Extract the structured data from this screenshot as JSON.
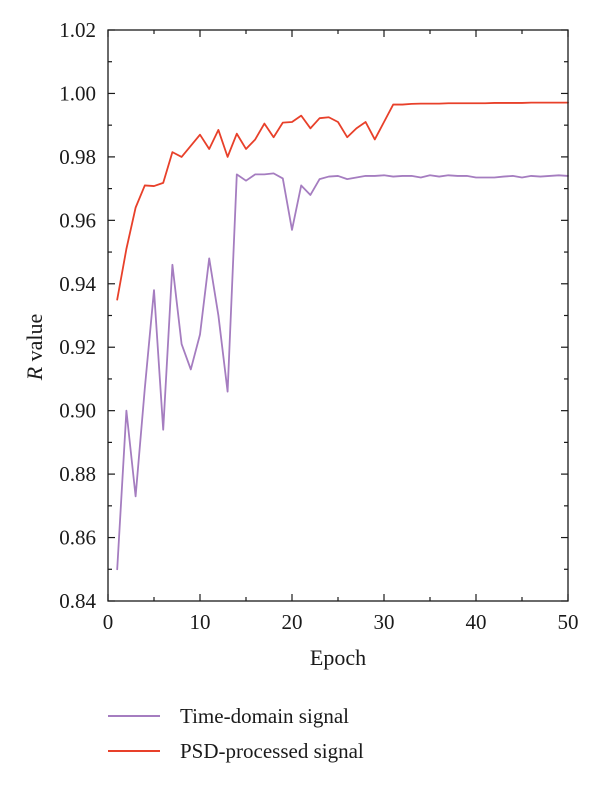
{
  "chart_data": {
    "type": "line",
    "title": "",
    "xlabel": "Epoch",
    "ylabel_italic": "R",
    "ylabel_rest": " value",
    "xlim": [
      0,
      50
    ],
    "ylim": [
      0.84,
      1.02
    ],
    "xticks": [
      0,
      10,
      20,
      30,
      40,
      50
    ],
    "xtick_labels": [
      "0",
      "10",
      "20",
      "30",
      "40",
      "50"
    ],
    "yticks": [
      0.84,
      0.86,
      0.88,
      0.9,
      0.92,
      0.94,
      0.96,
      0.98,
      1.0,
      1.02
    ],
    "ytick_labels": [
      "0.84",
      "0.86",
      "0.88",
      "0.90",
      "0.92",
      "0.94",
      "0.96",
      "0.98",
      "1.00",
      "1.02"
    ],
    "grid": false,
    "legend_position": "bottom",
    "x": [
      1,
      2,
      3,
      4,
      5,
      6,
      7,
      8,
      9,
      10,
      11,
      12,
      13,
      14,
      15,
      16,
      17,
      18,
      19,
      20,
      21,
      22,
      23,
      24,
      25,
      26,
      27,
      28,
      29,
      30,
      31,
      32,
      33,
      34,
      35,
      36,
      37,
      38,
      39,
      40,
      41,
      42,
      43,
      44,
      45,
      46,
      47,
      48,
      49,
      50
    ],
    "series": [
      {
        "name": "Time-domain signal",
        "color": "#a57dc0",
        "values": [
          0.85,
          0.9,
          0.873,
          0.907,
          0.938,
          0.894,
          0.946,
          0.921,
          0.913,
          0.924,
          0.948,
          0.93,
          0.906,
          0.9745,
          0.9725,
          0.9745,
          0.9745,
          0.9748,
          0.9732,
          0.957,
          0.971,
          0.968,
          0.973,
          0.9738,
          0.974,
          0.973,
          0.9735,
          0.974,
          0.974,
          0.9742,
          0.9738,
          0.974,
          0.974,
          0.9735,
          0.9742,
          0.9738,
          0.9742,
          0.974,
          0.974,
          0.9735,
          0.9735,
          0.9735,
          0.9738,
          0.974,
          0.9735,
          0.974,
          0.9738,
          0.974,
          0.9742,
          0.974
        ]
      },
      {
        "name": "PSD-processed signal",
        "color": "#e8402a",
        "values": [
          0.935,
          0.951,
          0.964,
          0.971,
          0.9708,
          0.9718,
          0.9815,
          0.98,
          0.9835,
          0.987,
          0.9825,
          0.9885,
          0.98,
          0.9873,
          0.9825,
          0.9855,
          0.9905,
          0.9862,
          0.9908,
          0.991,
          0.993,
          0.989,
          0.9922,
          0.9925,
          0.991,
          0.9862,
          0.989,
          0.991,
          0.9855,
          0.991,
          0.9965,
          0.9965,
          0.9967,
          0.9968,
          0.9968,
          0.9968,
          0.9969,
          0.9969,
          0.9969,
          0.9969,
          0.9969,
          0.997,
          0.997,
          0.997,
          0.997,
          0.9971,
          0.9971,
          0.9971,
          0.9971,
          0.9971
        ]
      }
    ]
  }
}
